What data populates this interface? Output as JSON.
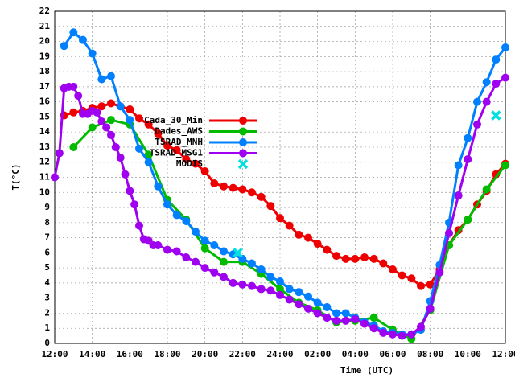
{
  "chart_data": {
    "type": "line",
    "ylabel": "T(°C)",
    "xlabel": "Time (UTC)",
    "xlim": [
      0,
      24
    ],
    "ylim": [
      0,
      22
    ],
    "xticks": [
      {
        "value": 0,
        "label": "12:00"
      },
      {
        "value": 2,
        "label": "14:00"
      },
      {
        "value": 4,
        "label": "16:00"
      },
      {
        "value": 6,
        "label": "18:00"
      },
      {
        "value": 8,
        "label": "20:00"
      },
      {
        "value": 10,
        "label": "22:00"
      },
      {
        "value": 12,
        "label": "24:00"
      },
      {
        "value": 14,
        "label": "02:00"
      },
      {
        "value": 16,
        "label": "04:00"
      },
      {
        "value": 18,
        "label": "06:00"
      },
      {
        "value": 20,
        "label": "08:00"
      },
      {
        "value": 22,
        "label": "10:00"
      },
      {
        "value": 24,
        "label": "12:00"
      }
    ],
    "yticks": [
      0,
      1,
      2,
      3,
      4,
      5,
      6,
      7,
      8,
      9,
      10,
      11,
      12,
      13,
      14,
      15,
      16,
      17,
      18,
      19,
      20,
      21,
      22
    ],
    "grid": true,
    "series": [
      {
        "name": "Cada_30_Min",
        "color": "#ee0000",
        "marker": "circle",
        "x": [
          0.5,
          1,
          1.5,
          2,
          2.5,
          3,
          3.5,
          4,
          4.5,
          5,
          5.5,
          6,
          6.5,
          7,
          7.5,
          8,
          8.5,
          9,
          9.5,
          10,
          10.5,
          11,
          11.5,
          12,
          12.5,
          13,
          13.5,
          14,
          14.5,
          15,
          15.5,
          16,
          16.5,
          17,
          17.5,
          18,
          18.5,
          19,
          19.5,
          20,
          20.5,
          21,
          21.5,
          22,
          22.5,
          23,
          23.5,
          24
        ],
        "values": [
          15.1,
          15.3,
          15.4,
          15.6,
          15.7,
          15.9,
          15.7,
          15.5,
          14.9,
          14.5,
          13.9,
          13.1,
          12.8,
          12.2,
          11.9,
          11.4,
          10.6,
          10.4,
          10.3,
          10.2,
          10.0,
          9.7,
          9.1,
          8.3,
          7.8,
          7.2,
          7.0,
          6.6,
          6.2,
          5.8,
          5.6,
          5.6,
          5.7,
          5.6,
          5.3,
          4.9,
          4.5,
          4.3,
          3.8,
          3.9,
          4.9,
          6.5,
          7.5,
          8.2,
          9.2,
          10.1,
          11.2,
          11.9
        ]
      },
      {
        "name": "Dades_AWS",
        "color": "#00bb00",
        "marker": "circle",
        "x": [
          1,
          2,
          3,
          4,
          5,
          6,
          7,
          8,
          9,
          10,
          11,
          12,
          13,
          14,
          15,
          16,
          17,
          18,
          19,
          20,
          21,
          22,
          23,
          24
        ],
        "values": [
          13.0,
          14.3,
          14.8,
          14.5,
          12.5,
          9.5,
          8.2,
          6.3,
          5.4,
          5.4,
          4.6,
          3.6,
          2.7,
          2.2,
          1.4,
          1.5,
          1.7,
          0.9,
          0.3,
          2.2,
          6.5,
          8.2,
          10.2,
          11.8
        ]
      },
      {
        "name": "TSRAD_MNH",
        "color": "#0080ff",
        "marker": "circle",
        "x": [
          0.5,
          1,
          1.5,
          2,
          2.5,
          3,
          3.5,
          4,
          4.5,
          5,
          5.5,
          6,
          6.5,
          7,
          7.5,
          8,
          8.5,
          9,
          9.5,
          10,
          10.5,
          11,
          11.5,
          12,
          12.5,
          13,
          13.5,
          14,
          14.5,
          15,
          15.5,
          16,
          16.5,
          17,
          17.5,
          18,
          18.5,
          19,
          19.5,
          20,
          20.5,
          21,
          21.5,
          22,
          22.5,
          23,
          23.5,
          24
        ],
        "values": [
          19.7,
          20.6,
          20.1,
          19.2,
          17.5,
          17.7,
          15.7,
          14.8,
          12.9,
          12.0,
          10.4,
          9.2,
          8.5,
          8.1,
          7.4,
          6.8,
          6.5,
          6.1,
          5.9,
          5.6,
          5.3,
          4.9,
          4.4,
          4.1,
          3.6,
          3.4,
          3.1,
          2.7,
          2.4,
          2.0,
          2.0,
          1.7,
          1.4,
          1.2,
          0.8,
          0.7,
          0.6,
          0.6,
          0.9,
          2.8,
          5.2,
          8.0,
          11.8,
          13.6,
          16.0,
          17.3,
          18.8,
          19.6
        ]
      },
      {
        "name": "TSRAD_MSG1",
        "color": "#a000f0",
        "marker": "circle",
        "x": [
          0,
          0.25,
          0.5,
          0.75,
          1,
          1.25,
          1.5,
          1.75,
          2,
          2.25,
          2.5,
          2.75,
          3,
          3.25,
          3.5,
          3.75,
          4,
          4.25,
          4.5,
          4.75,
          5,
          5.25,
          5.5,
          6,
          6.5,
          7,
          7.5,
          8,
          8.5,
          9,
          9.5,
          10,
          10.5,
          11,
          11.5,
          12,
          12.5,
          13,
          13.5,
          14,
          14.5,
          15,
          15.5,
          16,
          16.5,
          17,
          17.5,
          18,
          18.5,
          19,
          19.5,
          20,
          20.5,
          21,
          21.5,
          22,
          22.5,
          23,
          23.5,
          24
        ],
        "values": [
          11.0,
          12.6,
          16.9,
          17.0,
          17.0,
          16.4,
          15.2,
          15.2,
          15.4,
          15.3,
          14.7,
          14.3,
          13.8,
          13.0,
          12.3,
          11.2,
          10.1,
          9.2,
          7.8,
          6.9,
          6.8,
          6.5,
          6.5,
          6.2,
          6.1,
          5.7,
          5.4,
          5.0,
          4.7,
          4.4,
          4.0,
          3.9,
          3.8,
          3.6,
          3.5,
          3.2,
          2.9,
          2.6,
          2.3,
          2.0,
          1.7,
          1.5,
          1.5,
          1.6,
          1.3,
          1.0,
          0.7,
          0.6,
          0.5,
          0.6,
          1.1,
          2.3,
          4.7,
          7.3,
          9.8,
          12.2,
          14.5,
          16.0,
          17.2,
          17.6
        ]
      },
      {
        "name": "MODIS",
        "color": "#00e0e0",
        "marker": "cross",
        "x": [
          9.75,
          23.5
        ],
        "values": [
          6.0,
          15.1
        ]
      }
    ]
  }
}
